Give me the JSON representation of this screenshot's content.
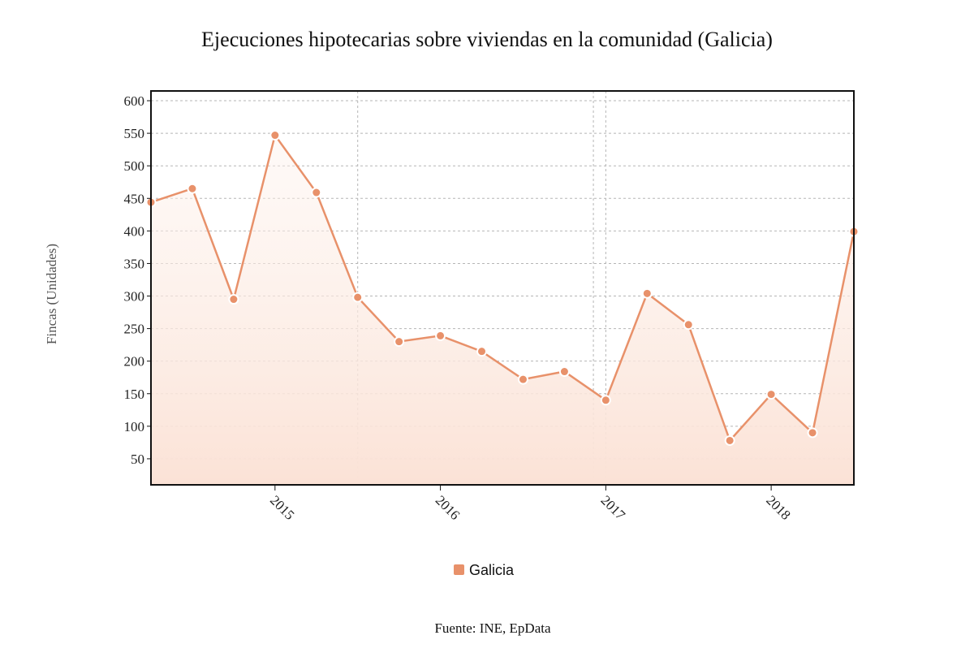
{
  "chart_data": {
    "type": "area",
    "title": "Ejecuciones hipotecarias sobre viviendas en la comunidad (Galicia)",
    "ylabel": "Fincas (Unidades)",
    "xlabel": "",
    "ylim": [
      10,
      615
    ],
    "yticks": [
      50,
      100,
      150,
      200,
      250,
      300,
      350,
      400,
      450,
      500,
      550,
      600
    ],
    "xticks": [
      {
        "label": "2015",
        "x": 3
      },
      {
        "label": "2016",
        "x": 7
      },
      {
        "label": "2017",
        "x": 11
      },
      {
        "label": "2018",
        "x": 15
      }
    ],
    "x": [
      0,
      1,
      2,
      3,
      4,
      5,
      6,
      7,
      8,
      9,
      10,
      11,
      12,
      13,
      14,
      15,
      16,
      17
    ],
    "xlim": [
      0,
      17
    ],
    "series": [
      {
        "name": "Galicia",
        "color": "#e8916a",
        "values": [
          444,
          465,
          295,
          547,
          459,
          298,
          230,
          239,
          215,
          172,
          184,
          140,
          304,
          256,
          78,
          149,
          90,
          399
        ]
      }
    ],
    "grid": true,
    "legend": "bottom-center",
    "source": "Fuente: INE, EpData"
  }
}
